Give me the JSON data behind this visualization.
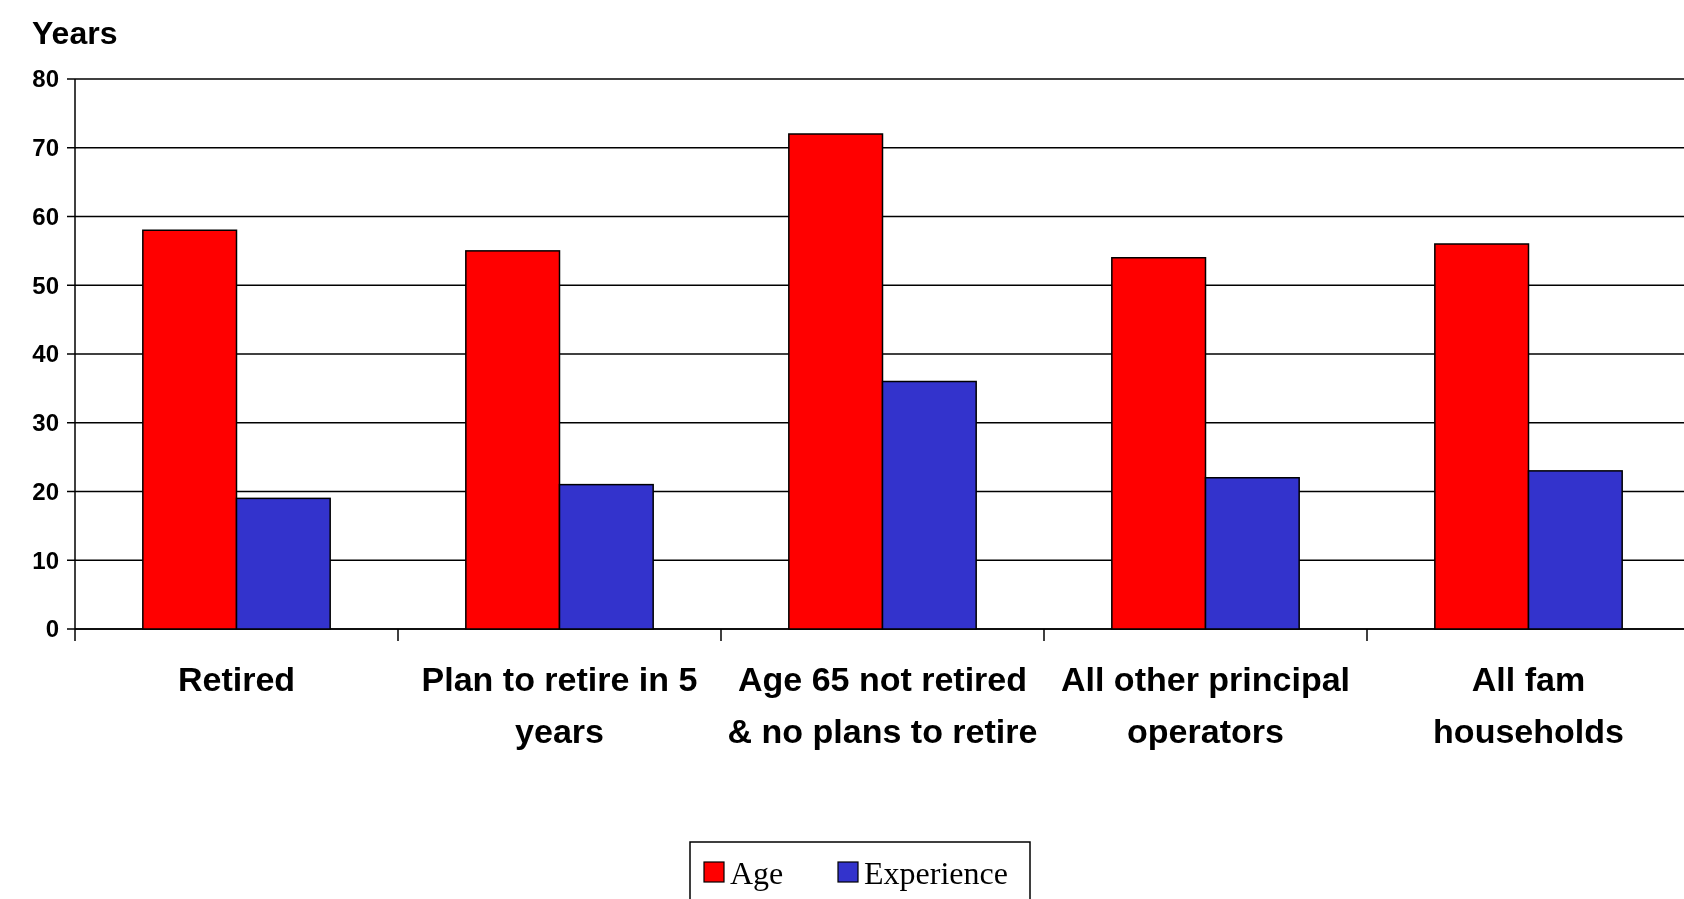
{
  "chart_data": {
    "type": "bar",
    "ylabel": "Years",
    "categories": [
      "Retired",
      "Plan to retire in 5 years",
      "Age 65 not retired & no plans to retire",
      "All other principal operators",
      "All fam households"
    ],
    "series": [
      {
        "name": "Age",
        "color": "#ff0000",
        "values": [
          58,
          55,
          72,
          54,
          56
        ]
      },
      {
        "name": "Experience",
        "color": "#3333cc",
        "values": [
          19,
          21,
          36,
          22,
          23
        ]
      }
    ],
    "ylim": [
      0,
      80
    ],
    "yticks": [
      0,
      10,
      20,
      30,
      40,
      50,
      60,
      70,
      80
    ],
    "grid": "y",
    "legend": "bottom"
  }
}
